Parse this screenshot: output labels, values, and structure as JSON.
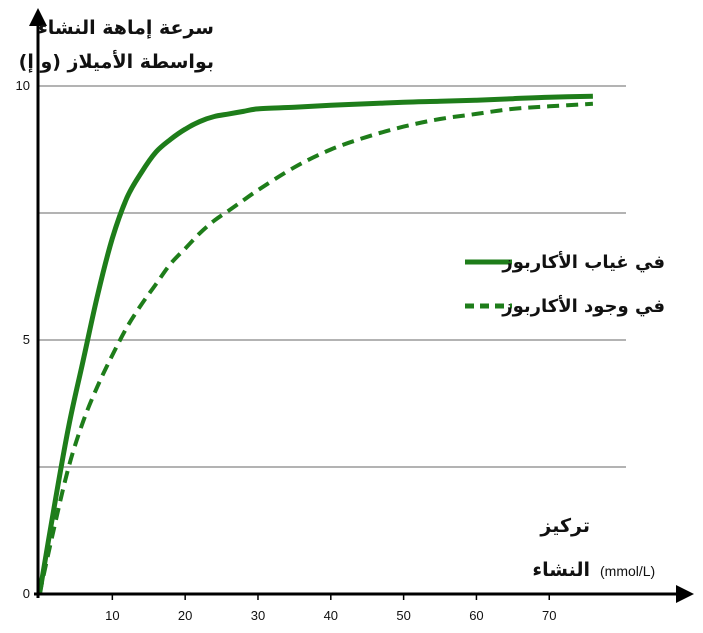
{
  "chart_data": {
    "type": "line",
    "ylabel_line1": "سرعة إماهة النشاء",
    "ylabel_line2": "بواسطة الأميلاز (و إ)",
    "xlabel_line1": "تركيز",
    "xlabel_line2": "النشاء",
    "xunit": "(mmol/L)",
    "xlim": [
      0,
      80
    ],
    "ylim": [
      0,
      10
    ],
    "xticks": [
      10,
      20,
      30,
      40,
      50,
      60,
      70
    ],
    "yticks": [
      0,
      5,
      10
    ],
    "ygrid": [
      2.5,
      5,
      7.5,
      10
    ],
    "grid": "horizontal",
    "legend_position": "right",
    "series": [
      {
        "name": "في غياب الأكاربوز",
        "color": "#1e7d1a",
        "style": "solid",
        "x": [
          0,
          2,
          4,
          6,
          8,
          10,
          12,
          14,
          16,
          18,
          20,
          22,
          24,
          26,
          28,
          30,
          35,
          40,
          45,
          50,
          55,
          60,
          65,
          70,
          76
        ],
        "y": [
          0,
          1.7,
          3.3,
          4.6,
          5.9,
          7.0,
          7.8,
          8.3,
          8.7,
          8.95,
          9.15,
          9.3,
          9.4,
          9.45,
          9.5,
          9.55,
          9.58,
          9.62,
          9.65,
          9.68,
          9.7,
          9.72,
          9.75,
          9.78,
          9.8
        ]
      },
      {
        "name": "في وجود الأكاربوز",
        "color": "#1e7d1a",
        "style": "dashed",
        "x": [
          0,
          2,
          4,
          6,
          8,
          10,
          12,
          14,
          16,
          18,
          20,
          22,
          24,
          26,
          28,
          30,
          35,
          40,
          45,
          50,
          55,
          60,
          65,
          70,
          76
        ],
        "y": [
          0,
          1.3,
          2.5,
          3.4,
          4.1,
          4.7,
          5.25,
          5.7,
          6.1,
          6.5,
          6.8,
          7.1,
          7.35,
          7.55,
          7.75,
          7.95,
          8.4,
          8.75,
          9.0,
          9.2,
          9.35,
          9.45,
          9.55,
          9.6,
          9.65
        ]
      }
    ]
  }
}
